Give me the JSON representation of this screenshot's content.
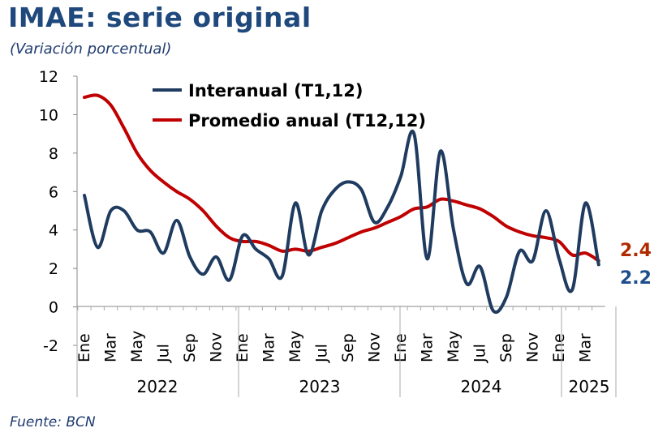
{
  "title": "IMAE: serie original",
  "subtitle": "(Variación porcentual)",
  "source": "Fuente: BCN",
  "colors": {
    "interanual": "#1f3b5f",
    "promedio": "#c00000",
    "label_interanual": "#1f4e8c",
    "label_promedio": "#b02a00"
  },
  "chart_data": {
    "type": "line",
    "title": "IMAE: serie original",
    "ylabel": "(Variación porcentual)",
    "ylim": [
      -2,
      12
    ],
    "yticks": [
      -2,
      0,
      2,
      4,
      6,
      8,
      10,
      12
    ],
    "grid": false,
    "legend_position": "top-center",
    "month_tick_labels": [
      "Ene",
      "Mar",
      "May",
      "Jul",
      "Sep",
      "Nov",
      "Ene",
      "Mar",
      "May",
      "Jul",
      "Sep",
      "Nov",
      "Ene",
      "Mar",
      "May",
      "Jul",
      "Sep",
      "Nov",
      "Ene",
      "Mar"
    ],
    "month_tick_index": [
      0,
      2,
      4,
      6,
      8,
      10,
      12,
      14,
      16,
      18,
      20,
      22,
      24,
      26,
      28,
      30,
      32,
      34,
      36,
      38
    ],
    "year_labels": [
      "2022",
      "2023",
      "2024",
      "2025"
    ],
    "x": [
      "Ene 2022",
      "Feb 2022",
      "Mar 2022",
      "Abr 2022",
      "May 2022",
      "Jun 2022",
      "Jul 2022",
      "Ago 2022",
      "Sep 2022",
      "Oct 2022",
      "Nov 2022",
      "Dic 2022",
      "Ene 2023",
      "Feb 2023",
      "Mar 2023",
      "Abr 2023",
      "May 2023",
      "Jun 2023",
      "Jul 2023",
      "Ago 2023",
      "Sep 2023",
      "Oct 2023",
      "Nov 2023",
      "Dic 2023",
      "Ene 2024",
      "Feb 2024",
      "Mar 2024",
      "Abr 2024",
      "May 2024",
      "Jun 2024",
      "Jul 2024",
      "Ago 2024",
      "Sep 2024",
      "Oct 2024",
      "Nov 2024",
      "Dic 2024",
      "Ene 2025",
      "Feb 2025",
      "Mar 2025",
      "Abr 2025"
    ],
    "series": [
      {
        "name": "Interanual (T1,12)",
        "values": [
          5.8,
          3.1,
          5.0,
          5.0,
          4.0,
          3.9,
          2.8,
          4.5,
          2.6,
          1.7,
          2.6,
          1.4,
          3.7,
          3.0,
          2.5,
          1.6,
          5.4,
          2.7,
          5.0,
          6.1,
          6.5,
          6.1,
          4.4,
          5.2,
          6.8,
          9.0,
          2.5,
          8.1,
          4.0,
          1.2,
          2.1,
          -0.2,
          0.5,
          2.9,
          2.4,
          5.0,
          2.5,
          0.9,
          5.4,
          2.2
        ]
      },
      {
        "name": "Promedio anual (T12,12)",
        "values": [
          10.9,
          11.0,
          10.5,
          9.3,
          8.0,
          7.1,
          6.5,
          6.0,
          5.6,
          5.0,
          4.2,
          3.6,
          3.4,
          3.4,
          3.2,
          2.9,
          3.0,
          2.9,
          3.1,
          3.3,
          3.6,
          3.9,
          4.1,
          4.4,
          4.7,
          5.1,
          5.2,
          5.6,
          5.5,
          5.3,
          5.1,
          4.7,
          4.2,
          3.9,
          3.7,
          3.6,
          3.4,
          2.7,
          2.8,
          2.4
        ]
      }
    ],
    "end_labels": {
      "promedio": "2.4",
      "interanual": "2.2"
    }
  }
}
